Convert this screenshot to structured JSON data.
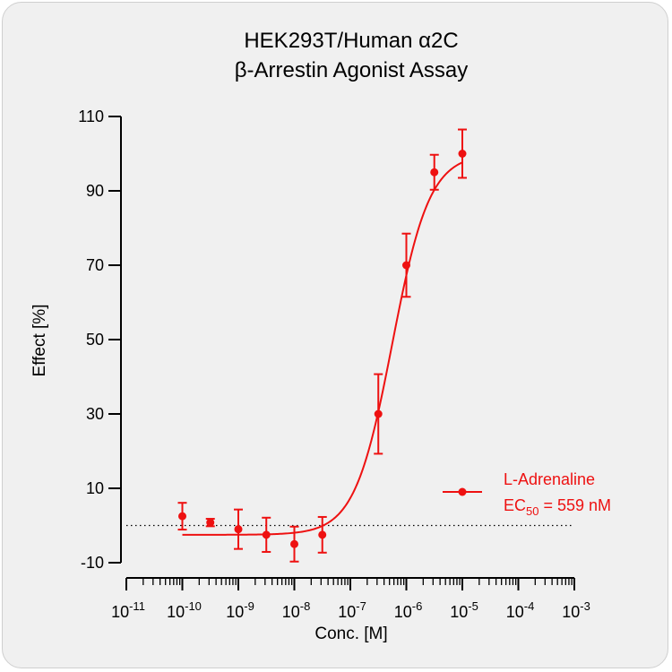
{
  "chart_data": {
    "type": "scatter",
    "title_line1": "HEK293T/Human α2C",
    "title_line2": "β-Arrestin Agonist Assay",
    "xlabel": "Conc. [M]",
    "ylabel": "Effect  [%]",
    "x_scale": "log10",
    "xlim": [
      1e-11,
      0.001
    ],
    "x_ticks": [
      {
        "base": "10",
        "exp": "-11"
      },
      {
        "base": "10",
        "exp": "-10"
      },
      {
        "base": "10",
        "exp": "-9"
      },
      {
        "base": "10",
        "exp": "-8"
      },
      {
        "base": "10",
        "exp": "-7"
      },
      {
        "base": "10",
        "exp": "-6"
      },
      {
        "base": "10",
        "exp": "-5"
      },
      {
        "base": "10",
        "exp": "-4"
      },
      {
        "base": "10",
        "exp": "-3"
      }
    ],
    "ylim": [
      -10,
      110
    ],
    "y_ticks": [
      "110",
      "90",
      "70",
      "50",
      "30",
      "10",
      "-10"
    ],
    "y_tick_values": [
      110,
      90,
      70,
      50,
      30,
      10,
      -10
    ],
    "baseline": 0,
    "series": [
      {
        "name": "L-Adrenaline",
        "color": "#ee1111",
        "points": [
          {
            "x": 1e-10,
            "y": 2.5,
            "err": 3.6
          },
          {
            "x": 3.16e-10,
            "y": 0.8,
            "err": 1.0
          },
          {
            "x": 1e-09,
            "y": -1.0,
            "err": 5.3
          },
          {
            "x": 3.16e-09,
            "y": -2.5,
            "err": 4.6
          },
          {
            "x": 1e-08,
            "y": -5.0,
            "err": 4.7
          },
          {
            "x": 3.16e-08,
            "y": -2.5,
            "err": 4.8
          },
          {
            "x": 3.16e-07,
            "y": 30.0,
            "err": 10.7
          },
          {
            "x": 1e-06,
            "y": 70.0,
            "err": 8.5
          },
          {
            "x": 3.16e-06,
            "y": 95.0,
            "err": 4.7
          },
          {
            "x": 1e-05,
            "y": 100.0,
            "err": 6.5
          }
        ],
        "fit": {
          "model": "4PL",
          "bottom": -2.5,
          "top": 100,
          "log_ec50": -6.253,
          "hill": 1.3,
          "x_range": [
            1e-10,
            1e-05
          ]
        }
      }
    ],
    "legend": {
      "position": "right",
      "series_label": "L-Adrenaline",
      "ec_prefix": "EC",
      "ec_sub": "50",
      "ec_value": " = 559 nM"
    }
  }
}
